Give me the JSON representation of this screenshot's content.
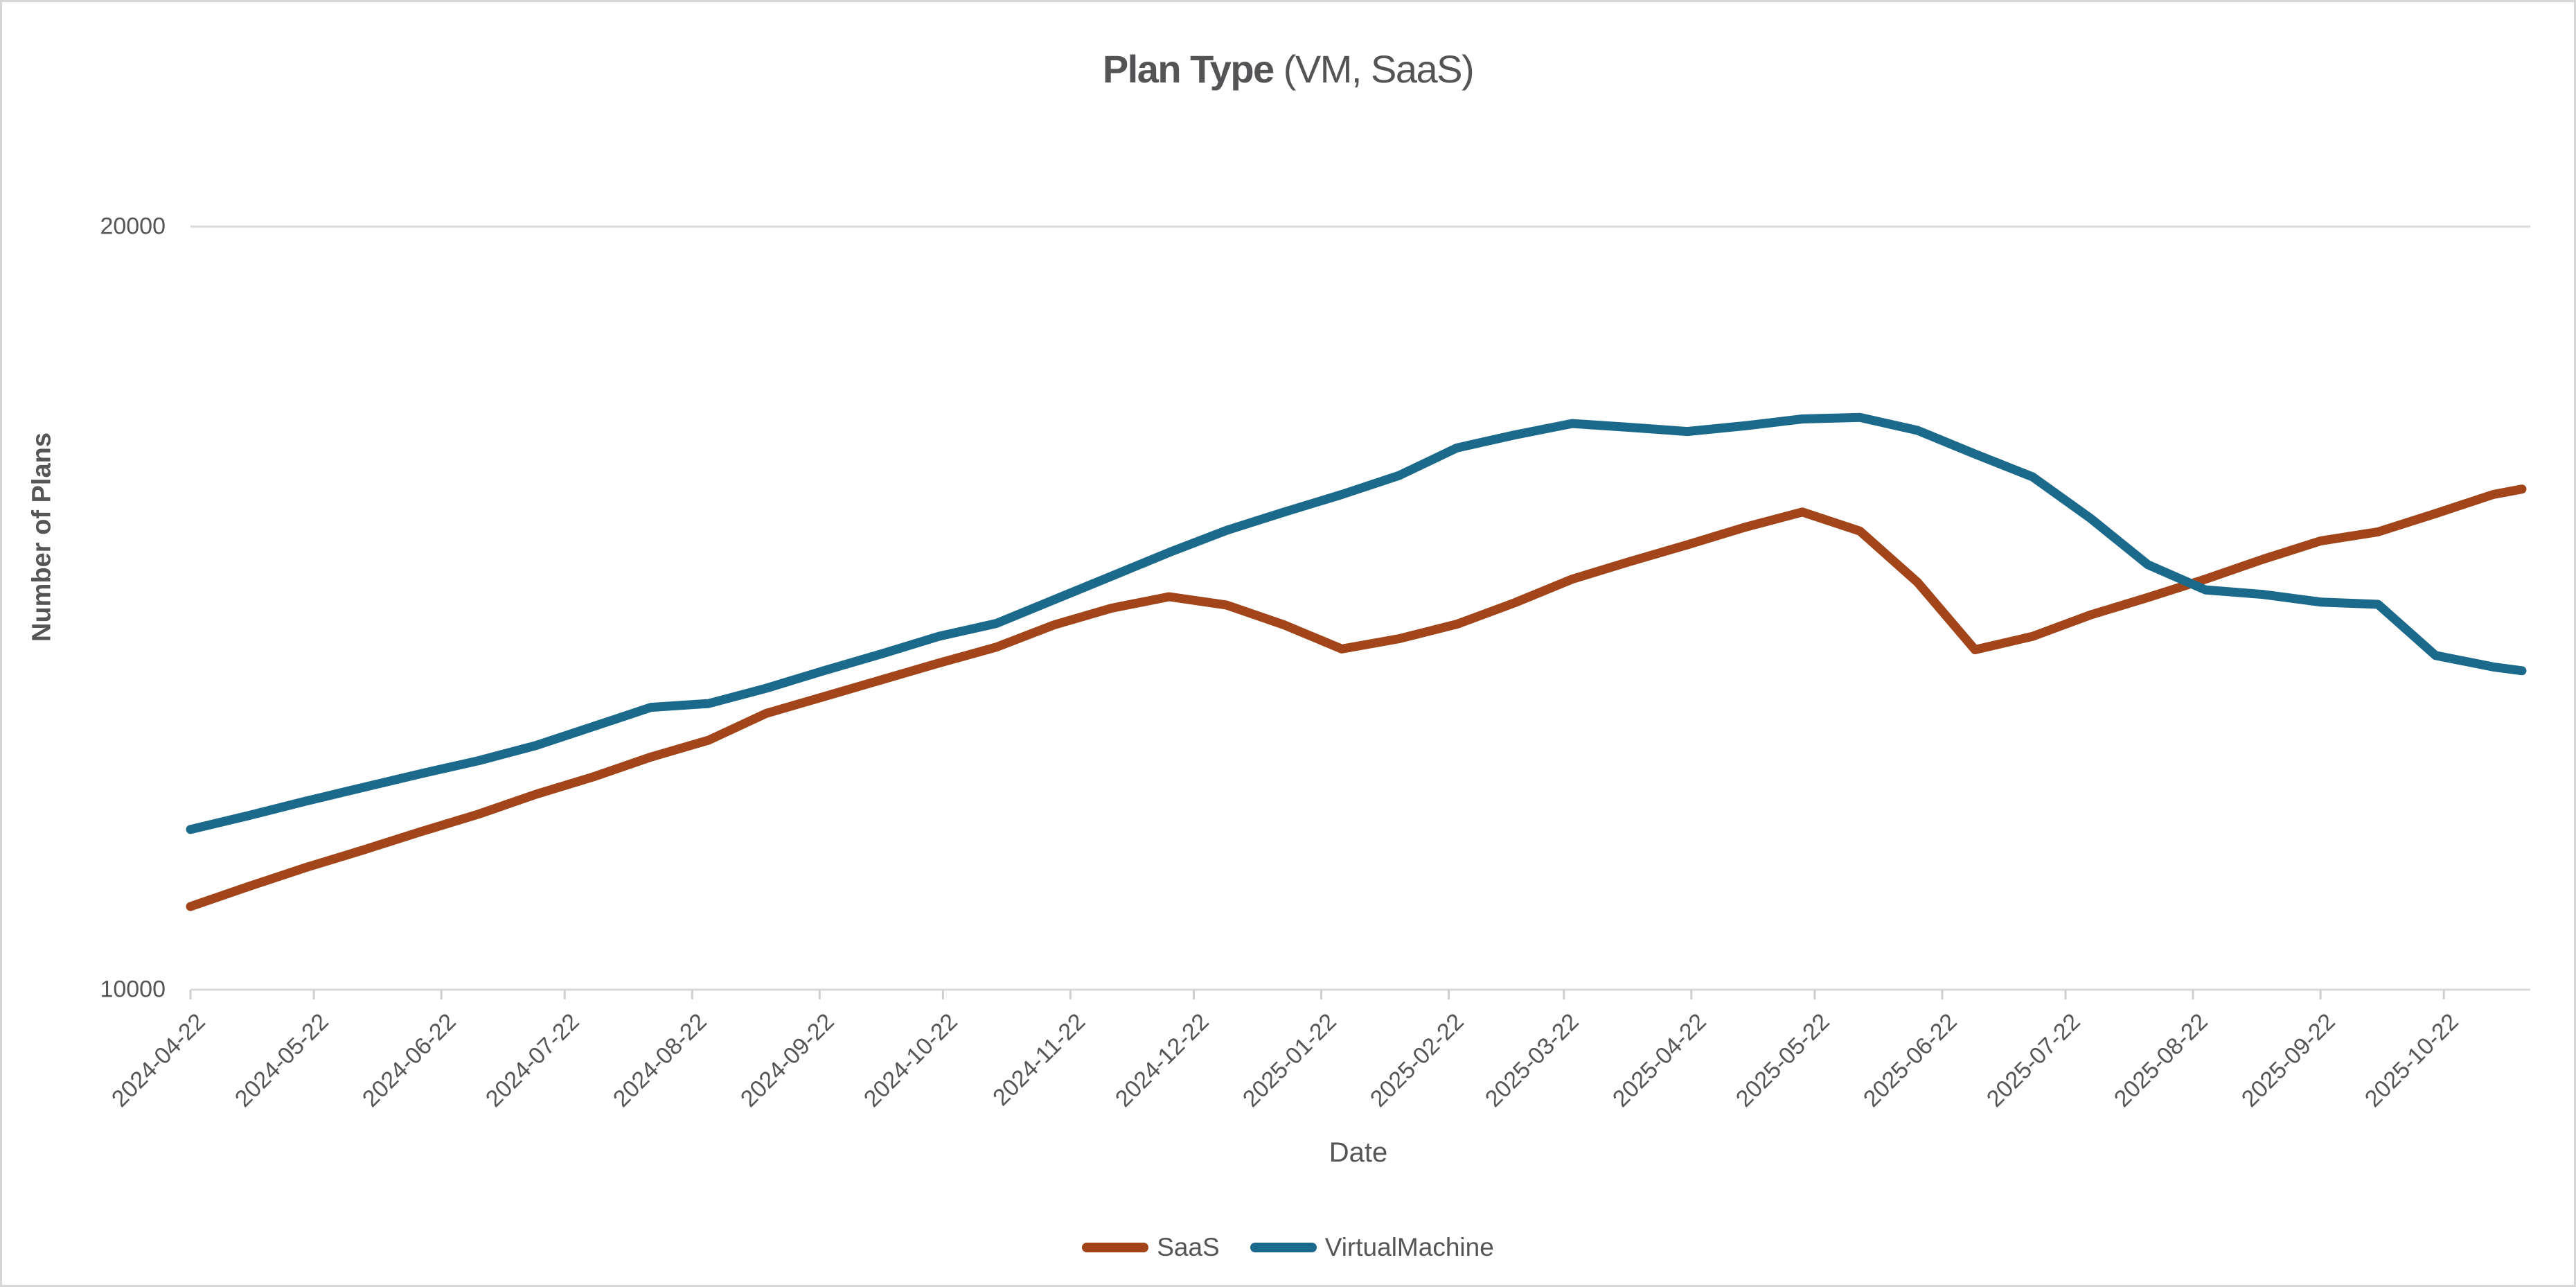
{
  "title": {
    "bold": "Plan Type",
    "regular": " (VM, SaaS)"
  },
  "axes": {
    "x_label": "Date",
    "y_label": "Number of Plans",
    "y_ticks": [
      {
        "label": "20000",
        "value": 20000
      },
      {
        "label": "10000",
        "value": 10000
      }
    ],
    "x_ticks": [
      "2024-04-22",
      "2024-05-22",
      "2024-06-22",
      "2024-07-22",
      "2024-08-22",
      "2024-09-22",
      "2024-10-22",
      "2024-11-22",
      "2024-12-22",
      "2025-01-22",
      "2025-02-22",
      "2025-03-22",
      "2025-04-22",
      "2025-05-22",
      "2025-06-22",
      "2025-07-22",
      "2025-08-22",
      "2025-09-22",
      "2025-10-22"
    ]
  },
  "legend": [
    {
      "label": "SaaS",
      "color": "#A3451A"
    },
    {
      "label": "VirtualMachine",
      "color": "#1B6A8C"
    }
  ],
  "colors": {
    "saas": "#A3451A",
    "virtual_machine": "#1B6A8C",
    "grid_line": "#d9d9d9",
    "tick_mark": "#cfcfcf",
    "text": "#555557"
  },
  "chart_data": {
    "type": "line",
    "title": "Plan Type (VM, SaaS)",
    "xlabel": "Date",
    "ylabel": "Number of Plans",
    "ylim": [
      10000,
      20000
    ],
    "x_range": [
      "2024-04-22",
      "2025-11-10"
    ],
    "grid": "horizontal gridline at 20000 and baseline at 10000 only",
    "legend_position": "bottom-center",
    "x": [
      "2024-04-22",
      "2024-05-06",
      "2024-05-20",
      "2024-06-03",
      "2024-06-17",
      "2024-07-01",
      "2024-07-15",
      "2024-07-29",
      "2024-08-12",
      "2024-08-26",
      "2024-09-09",
      "2024-09-23",
      "2024-10-07",
      "2024-10-21",
      "2024-11-04",
      "2024-11-18",
      "2024-12-02",
      "2024-12-16",
      "2024-12-30",
      "2025-01-13",
      "2025-01-27",
      "2025-02-10",
      "2025-02-24",
      "2025-03-10",
      "2025-03-24",
      "2025-04-07",
      "2025-04-21",
      "2025-05-05",
      "2025-05-19",
      "2025-06-02",
      "2025-06-16",
      "2025-06-30",
      "2025-07-14",
      "2025-07-28",
      "2025-08-11",
      "2025-08-25",
      "2025-09-08",
      "2025-09-22",
      "2025-10-06",
      "2025-10-20",
      "2025-11-03",
      "2025-11-10"
    ],
    "series": [
      {
        "name": "SaaS",
        "color": "#A3451A",
        "values": [
          11090,
          11350,
          11600,
          11830,
          12070,
          12300,
          12560,
          12790,
          13050,
          13270,
          13620,
          13840,
          14060,
          14280,
          14490,
          14780,
          15000,
          15150,
          15040,
          14780,
          14465,
          14600,
          14790,
          15070,
          15380,
          15610,
          15830,
          16060,
          16260,
          16010,
          15340,
          14455,
          14630,
          14910,
          15140,
          15380,
          15640,
          15880,
          16000,
          16240,
          16490,
          16560
        ]
      },
      {
        "name": "VirtualMachine",
        "color": "#1B6A8C",
        "values": [
          12100,
          12280,
          12470,
          12650,
          12830,
          13000,
          13200,
          13450,
          13700,
          13750,
          13950,
          14180,
          14400,
          14630,
          14800,
          15110,
          15420,
          15730,
          16020,
          16260,
          16490,
          16740,
          17100,
          17270,
          17420,
          17370,
          17315,
          17390,
          17480,
          17500,
          17330,
          17020,
          16720,
          16180,
          15570,
          15240,
          15180,
          15080,
          15050,
          14380,
          14230,
          14180
        ]
      }
    ]
  }
}
